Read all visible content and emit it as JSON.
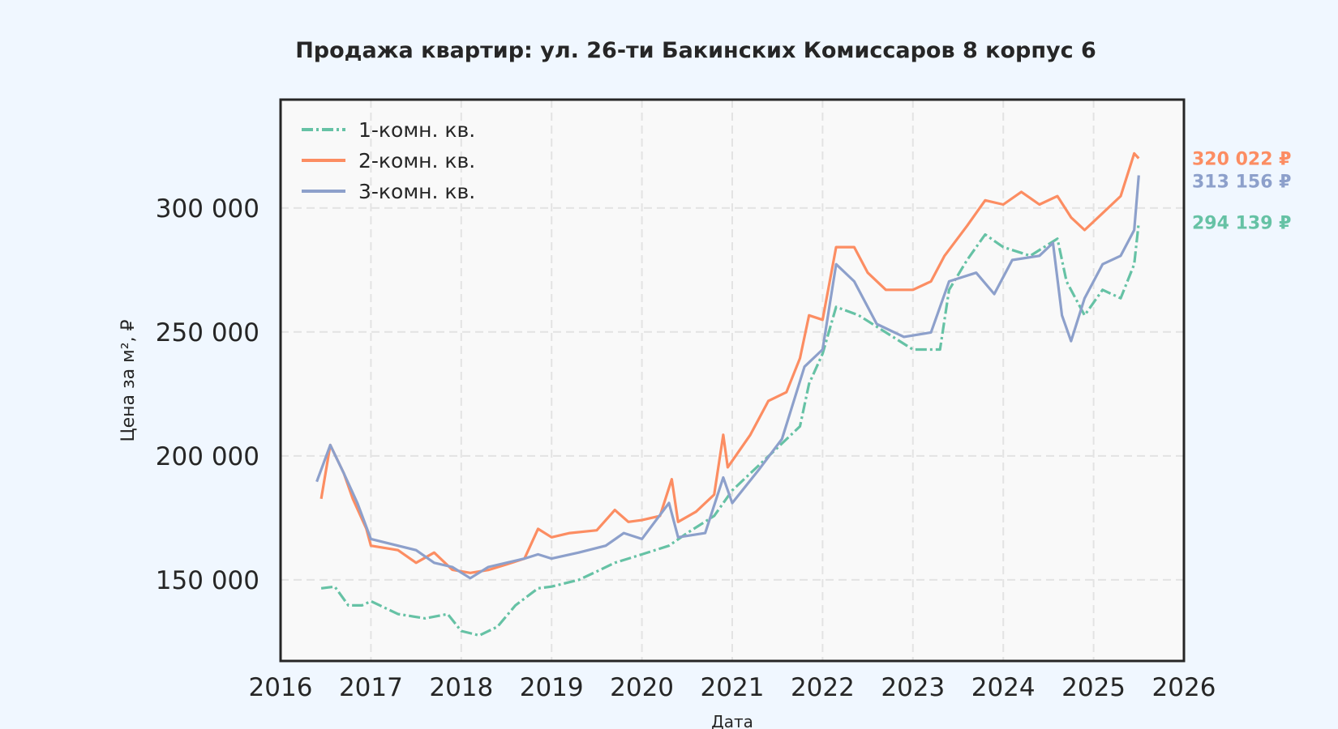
{
  "chart_data": {
    "type": "line",
    "title": "Продажа квартир: ул. 26-ти Бакинских Комиссаров 8 корпус 6",
    "xlabel": "Дата",
    "ylabel": "Цена за м², ₽",
    "xlim": [
      2016,
      2026
    ],
    "ylim": [
      117300,
      343700
    ],
    "xticks": [
      "2016",
      "2017",
      "2018",
      "2019",
      "2020",
      "2021",
      "2022",
      "2023",
      "2024",
      "2025",
      "2026"
    ],
    "yticks": [
      {
        "v": 150000,
        "label": "150 000"
      },
      {
        "v": 200000,
        "label": "200 000"
      },
      {
        "v": 250000,
        "label": "250 000"
      },
      {
        "v": 300000,
        "label": "300 000"
      }
    ],
    "grid": true,
    "legend_position": "top-right",
    "series": [
      {
        "name": "1-комн. кв.",
        "color": "#66c2a5",
        "dash": "dashdot",
        "last_label": "294 139 ₽",
        "x": [
          2016.45,
          2016.6,
          2016.75,
          2016.9,
          2017.0,
          2017.3,
          2017.6,
          2017.85,
          2018.0,
          2018.2,
          2018.4,
          2018.6,
          2018.85,
          2019.0,
          2019.3,
          2019.5,
          2019.7,
          2020.0,
          2020.3,
          2020.5,
          2020.8,
          2021.0,
          2021.3,
          2021.5,
          2021.75,
          2021.85,
          2022.0,
          2022.15,
          2022.4,
          2022.7,
          2023.0,
          2023.3,
          2023.4,
          2023.6,
          2023.8,
          2024.0,
          2024.3,
          2024.6,
          2024.7,
          2024.9,
          2025.1,
          2025.3,
          2025.45,
          2025.5
        ],
        "y": [
          146600,
          147300,
          139700,
          139700,
          141400,
          136200,
          134500,
          136200,
          129400,
          127600,
          131100,
          139700,
          146600,
          147300,
          150000,
          153400,
          156900,
          160300,
          163800,
          168900,
          175800,
          186100,
          196400,
          203300,
          211900,
          229100,
          241200,
          260100,
          256700,
          249800,
          242900,
          242900,
          267000,
          279000,
          289300,
          284200,
          280700,
          287600,
          270400,
          256700,
          267000,
          263600,
          277300,
          294139
        ]
      },
      {
        "name": "2-комн. кв.",
        "color": "#fc8d62",
        "dash": "solid",
        "last_label": "320 022 ₽",
        "x": [
          2016.45,
          2016.55,
          2016.7,
          2016.8,
          2016.95,
          2017.0,
          2017.3,
          2017.5,
          2017.7,
          2017.9,
          2018.1,
          2018.3,
          2018.5,
          2018.7,
          2018.85,
          2019.0,
          2019.2,
          2019.5,
          2019.7,
          2019.85,
          2020.0,
          2020.2,
          2020.33,
          2020.4,
          2020.6,
          2020.8,
          2020.9,
          2020.95,
          2021.2,
          2021.4,
          2021.6,
          2021.75,
          2021.85,
          2022.0,
          2022.15,
          2022.35,
          2022.5,
          2022.7,
          2023.0,
          2023.2,
          2023.35,
          2023.6,
          2023.8,
          2024.0,
          2024.2,
          2024.4,
          2024.6,
          2024.75,
          2024.9,
          2025.1,
          2025.3,
          2025.45,
          2025.5
        ],
        "y": [
          182700,
          204400,
          193000,
          182700,
          170600,
          163800,
          162000,
          156900,
          161000,
          154100,
          152800,
          154000,
          156200,
          158600,
          170600,
          167200,
          168900,
          170000,
          178200,
          173400,
          174100,
          175800,
          190600,
          173400,
          177500,
          184400,
          208500,
          195400,
          208500,
          222200,
          225700,
          239400,
          256700,
          254900,
          284200,
          284200,
          273900,
          267000,
          267000,
          270400,
          280700,
          292800,
          303100,
          301400,
          306500,
          301400,
          304800,
          296200,
          291100,
          297900,
          304800,
          322000,
          320022
        ]
      },
      {
        "name": "3-комн. кв.",
        "color": "#8da0cb",
        "dash": "solid",
        "last_label": "313 156 ₽",
        "x": [
          2016.4,
          2016.55,
          2016.7,
          2016.85,
          2017.0,
          2017.3,
          2017.5,
          2017.7,
          2017.9,
          2018.1,
          2018.3,
          2018.5,
          2018.7,
          2018.85,
          2019.0,
          2019.3,
          2019.6,
          2019.8,
          2020.0,
          2020.3,
          2020.4,
          2020.7,
          2020.9,
          2021.0,
          2021.3,
          2021.55,
          2021.8,
          2022.0,
          2022.15,
          2022.35,
          2022.6,
          2022.9,
          2023.2,
          2023.4,
          2023.7,
          2023.9,
          2024.1,
          2024.4,
          2024.55,
          2024.65,
          2024.75,
          2024.9,
          2025.1,
          2025.3,
          2025.45,
          2025.5
        ],
        "y": [
          189600,
          204400,
          193000,
          181000,
          166500,
          163800,
          162000,
          156900,
          155200,
          150700,
          155200,
          156900,
          158600,
          160300,
          158600,
          161000,
          163800,
          168900,
          166500,
          181000,
          167200,
          168900,
          191300,
          181000,
          194700,
          206800,
          236000,
          242900,
          277300,
          270400,
          253200,
          248000,
          249800,
          270400,
          273900,
          265300,
          279000,
          280700,
          285900,
          256700,
          246300,
          263600,
          277300,
          280700,
          291100,
          313156
        ]
      }
    ]
  }
}
